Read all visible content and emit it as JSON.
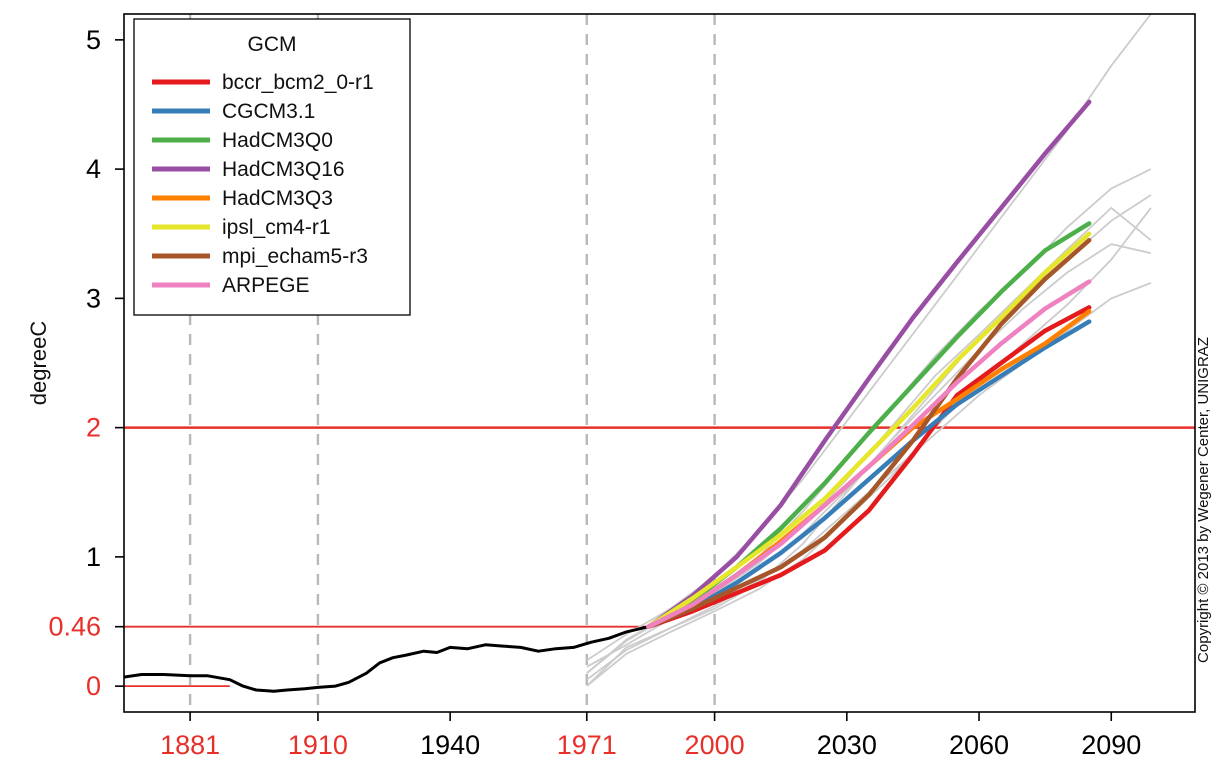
{
  "chart_data": {
    "type": "line",
    "ylabel": "degreeC",
    "xlim": [
      1866,
      2109
    ],
    "ylim": [
      -0.2,
      5.2
    ],
    "x_ticks": [
      {
        "label": "1881",
        "value": 1881,
        "color": "#e8302a"
      },
      {
        "label": "1910",
        "value": 1910,
        "color": "#e8302a"
      },
      {
        "label": "1940",
        "value": 1940,
        "color": "#000000"
      },
      {
        "label": "1971",
        "value": 1971,
        "color": "#e8302a"
      },
      {
        "label": "2000",
        "value": 2000,
        "color": "#e8302a"
      },
      {
        "label": "2030",
        "value": 2030,
        "color": "#000000"
      },
      {
        "label": "2060",
        "value": 2060,
        "color": "#000000"
      },
      {
        "label": "2090",
        "value": 2090,
        "color": "#000000"
      }
    ],
    "y_ticks": [
      {
        "label": "0",
        "value": 0,
        "color": "#e8302a"
      },
      {
        "label": "0.46",
        "value": 0.46,
        "color": "#e8302a"
      },
      {
        "label": "1",
        "value": 1,
        "color": "#000000"
      },
      {
        "label": "2",
        "value": 2,
        "color": "#e8302a"
      },
      {
        "label": "3",
        "value": 3,
        "color": "#000000"
      },
      {
        "label": "4",
        "value": 4,
        "color": "#000000"
      },
      {
        "label": "5",
        "value": 5,
        "color": "#000000"
      }
    ],
    "vlines": [
      1881,
      1910,
      1971,
      2000
    ],
    "hlines": [
      {
        "y": 0,
        "x_to": 1890
      },
      {
        "y": 0.46,
        "x_to": 1985
      },
      {
        "y": 2,
        "x_to": 2109
      }
    ],
    "legend": {
      "title": "GCM",
      "position": "top-left"
    },
    "observed": {
      "color": "#000000",
      "x": [
        1866,
        1870,
        1875,
        1881,
        1885,
        1890,
        1893,
        1896,
        1900,
        1903,
        1907,
        1910,
        1914,
        1917,
        1921,
        1924,
        1927,
        1930,
        1934,
        1937,
        1940,
        1944,
        1948,
        1952,
        1956,
        1960,
        1964,
        1968,
        1972,
        1976,
        1980,
        1985
      ],
      "y": [
        0.07,
        0.09,
        0.09,
        0.08,
        0.08,
        0.05,
        0.0,
        -0.03,
        -0.04,
        -0.03,
        -0.02,
        -0.01,
        0.0,
        0.03,
        0.1,
        0.18,
        0.22,
        0.24,
        0.27,
        0.26,
        0.3,
        0.29,
        0.32,
        0.31,
        0.3,
        0.27,
        0.29,
        0.3,
        0.34,
        0.37,
        0.42,
        0.46
      ]
    },
    "series": [
      {
        "name": "bccr_bcm2_0-r1",
        "color": "#e41a1c",
        "x": [
          1985,
          1995,
          2005,
          2015,
          2025,
          2035,
          2045,
          2055,
          2065,
          2075,
          2085
        ],
        "y": [
          0.46,
          0.58,
          0.72,
          0.86,
          1.05,
          1.36,
          1.79,
          2.25,
          2.5,
          2.75,
          2.93
        ]
      },
      {
        "name": "CGCM3.1",
        "color": "#377eb8",
        "x": [
          1985,
          1995,
          2005,
          2015,
          2025,
          2035,
          2045,
          2055,
          2065,
          2075,
          2085
        ],
        "y": [
          0.46,
          0.6,
          0.8,
          1.03,
          1.3,
          1.6,
          1.9,
          2.18,
          2.4,
          2.62,
          2.82
        ]
      },
      {
        "name": "HadCM3Q0",
        "color": "#4daf4a",
        "x": [
          1985,
          1995,
          2005,
          2015,
          2025,
          2035,
          2045,
          2055,
          2065,
          2075,
          2085
        ],
        "y": [
          0.46,
          0.66,
          0.92,
          1.22,
          1.57,
          1.96,
          2.33,
          2.7,
          3.05,
          3.37,
          3.58
        ]
      },
      {
        "name": "HadCM3Q16",
        "color": "#984ea3",
        "x": [
          1985,
          1995,
          2005,
          2015,
          2025,
          2035,
          2045,
          2055,
          2065,
          2075,
          2085
        ],
        "y": [
          0.46,
          0.7,
          1.0,
          1.4,
          1.9,
          2.38,
          2.85,
          3.28,
          3.7,
          4.12,
          4.52
        ]
      },
      {
        "name": "HadCM3Q3",
        "color": "#ff7f00",
        "x": [
          1985,
          1995,
          2005,
          2015,
          2025,
          2035,
          2045,
          2055,
          2065,
          2075,
          2085
        ],
        "y": [
          0.46,
          0.63,
          0.86,
          1.12,
          1.4,
          1.7,
          2.0,
          2.22,
          2.45,
          2.65,
          2.9
        ]
      },
      {
        "name": "ipsl_cm4-r1",
        "color": "#e6e62a",
        "x": [
          1985,
          1995,
          2005,
          2015,
          2025,
          2035,
          2045,
          2055,
          2065,
          2075,
          2085
        ],
        "y": [
          0.46,
          0.68,
          0.92,
          1.17,
          1.45,
          1.8,
          2.15,
          2.52,
          2.85,
          3.2,
          3.5
        ]
      },
      {
        "name": "mpi_echam5-r3",
        "color": "#a65628",
        "x": [
          1985,
          1995,
          2005,
          2015,
          2025,
          2035,
          2045,
          2055,
          2065,
          2075,
          2085
        ],
        "y": [
          0.46,
          0.6,
          0.76,
          0.92,
          1.15,
          1.48,
          1.9,
          2.38,
          2.8,
          3.15,
          3.45
        ]
      },
      {
        "name": "ARPEGE",
        "color": "#f081c0",
        "x": [
          1985,
          1995,
          2005,
          2015,
          2025,
          2035,
          2045,
          2055,
          2065,
          2075,
          2085
        ],
        "y": [
          0.46,
          0.63,
          0.86,
          1.1,
          1.4,
          1.7,
          2.02,
          2.35,
          2.65,
          2.92,
          3.13
        ]
      }
    ],
    "ensemble": {
      "color": "#cccccc",
      "x": [
        1971,
        1980,
        1990,
        2000,
        2010,
        2020,
        2030,
        2040,
        2050,
        2060,
        2070,
        2080,
        2090,
        2099
      ],
      "members": [
        [
          0.0,
          0.3,
          0.45,
          0.6,
          0.8,
          1.1,
          1.5,
          1.9,
          2.3,
          2.7,
          3.0,
          3.3,
          3.6,
          3.8
        ],
        [
          0.1,
          0.35,
          0.55,
          0.75,
          1.0,
          1.35,
          1.75,
          2.15,
          2.55,
          2.9,
          3.2,
          3.55,
          3.85,
          4.0
        ],
        [
          0.05,
          0.28,
          0.45,
          0.62,
          0.82,
          1.05,
          1.35,
          1.65,
          1.95,
          2.25,
          2.5,
          2.75,
          3.0,
          3.12
        ],
        [
          0.2,
          0.4,
          0.6,
          0.85,
          1.2,
          1.6,
          2.05,
          2.5,
          2.95,
          3.4,
          3.85,
          4.3,
          4.8,
          5.2
        ],
        [
          0.15,
          0.32,
          0.52,
          0.68,
          0.9,
          1.18,
          1.52,
          1.9,
          2.25,
          2.6,
          2.92,
          3.2,
          3.42,
          3.35
        ],
        [
          0.0,
          0.25,
          0.42,
          0.58,
          0.75,
          0.98,
          1.3,
          1.62,
          2.0,
          2.35,
          2.65,
          2.95,
          3.3,
          3.7
        ],
        [
          0.1,
          0.36,
          0.55,
          0.72,
          0.95,
          1.25,
          1.6,
          2.0,
          2.4,
          2.72,
          3.05,
          3.38,
          3.7,
          3.45
        ]
      ]
    }
  },
  "copyright": "Copyright © 2013 by Wegener Center, UNIGRAZ"
}
